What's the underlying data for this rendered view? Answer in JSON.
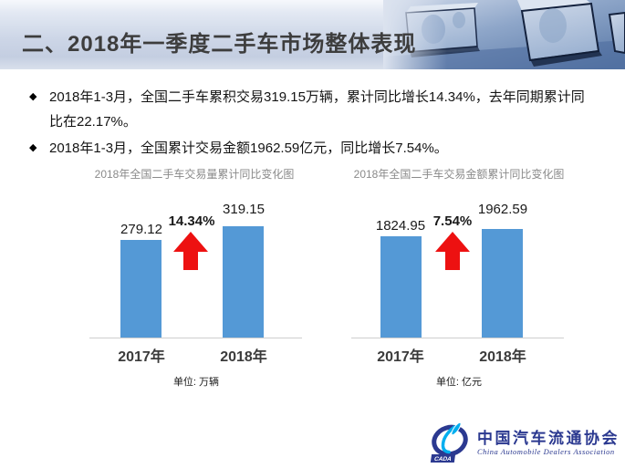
{
  "page": {
    "title": "二、2018年一季度二手车市场整体表现",
    "bullets": [
      {
        "marker": "◆",
        "text": "2018年1-3月，全国二手车累积交易319.15万辆，累计同比增长14.34%，去年同期累计同比在22.17%。"
      },
      {
        "marker": "◆",
        "text": "2018年1-3月，全国累计交易金额1962.59亿元，同比增长7.54%。"
      }
    ]
  },
  "chart_data": [
    {
      "type": "bar",
      "title": "2018年全国二手车交易量累计同比变化图",
      "categories": [
        "2017年",
        "2018年"
      ],
      "values": [
        279.12,
        319.15
      ],
      "growth_label": "14.34%",
      "unit_label": "单位: 万辆",
      "xlabel": "",
      "ylabel": "",
      "ylim": [
        0,
        350
      ],
      "grid": false,
      "legend": false,
      "bar_color": "#5499D6",
      "arrow_color": "#ED1111"
    },
    {
      "type": "bar",
      "title": "2018年全国二手车交易金额累计同比变化图",
      "categories": [
        "2017年",
        "2018年"
      ],
      "values": [
        1824.95,
        1962.59
      ],
      "growth_label": "7.54%",
      "unit_label": "单位: 亿元",
      "xlabel": "",
      "ylabel": "",
      "ylim": [
        0,
        2200
      ],
      "grid": false,
      "legend": false,
      "bar_color": "#5499D6",
      "arrow_color": "#ED1111"
    }
  ],
  "logo": {
    "acronym": "CADA",
    "name_zh": "中国汽车流通协会",
    "name_en": "China Automobile Dealers Association",
    "primary_color": "#2B3990",
    "accent_color": "#00AEEF"
  }
}
